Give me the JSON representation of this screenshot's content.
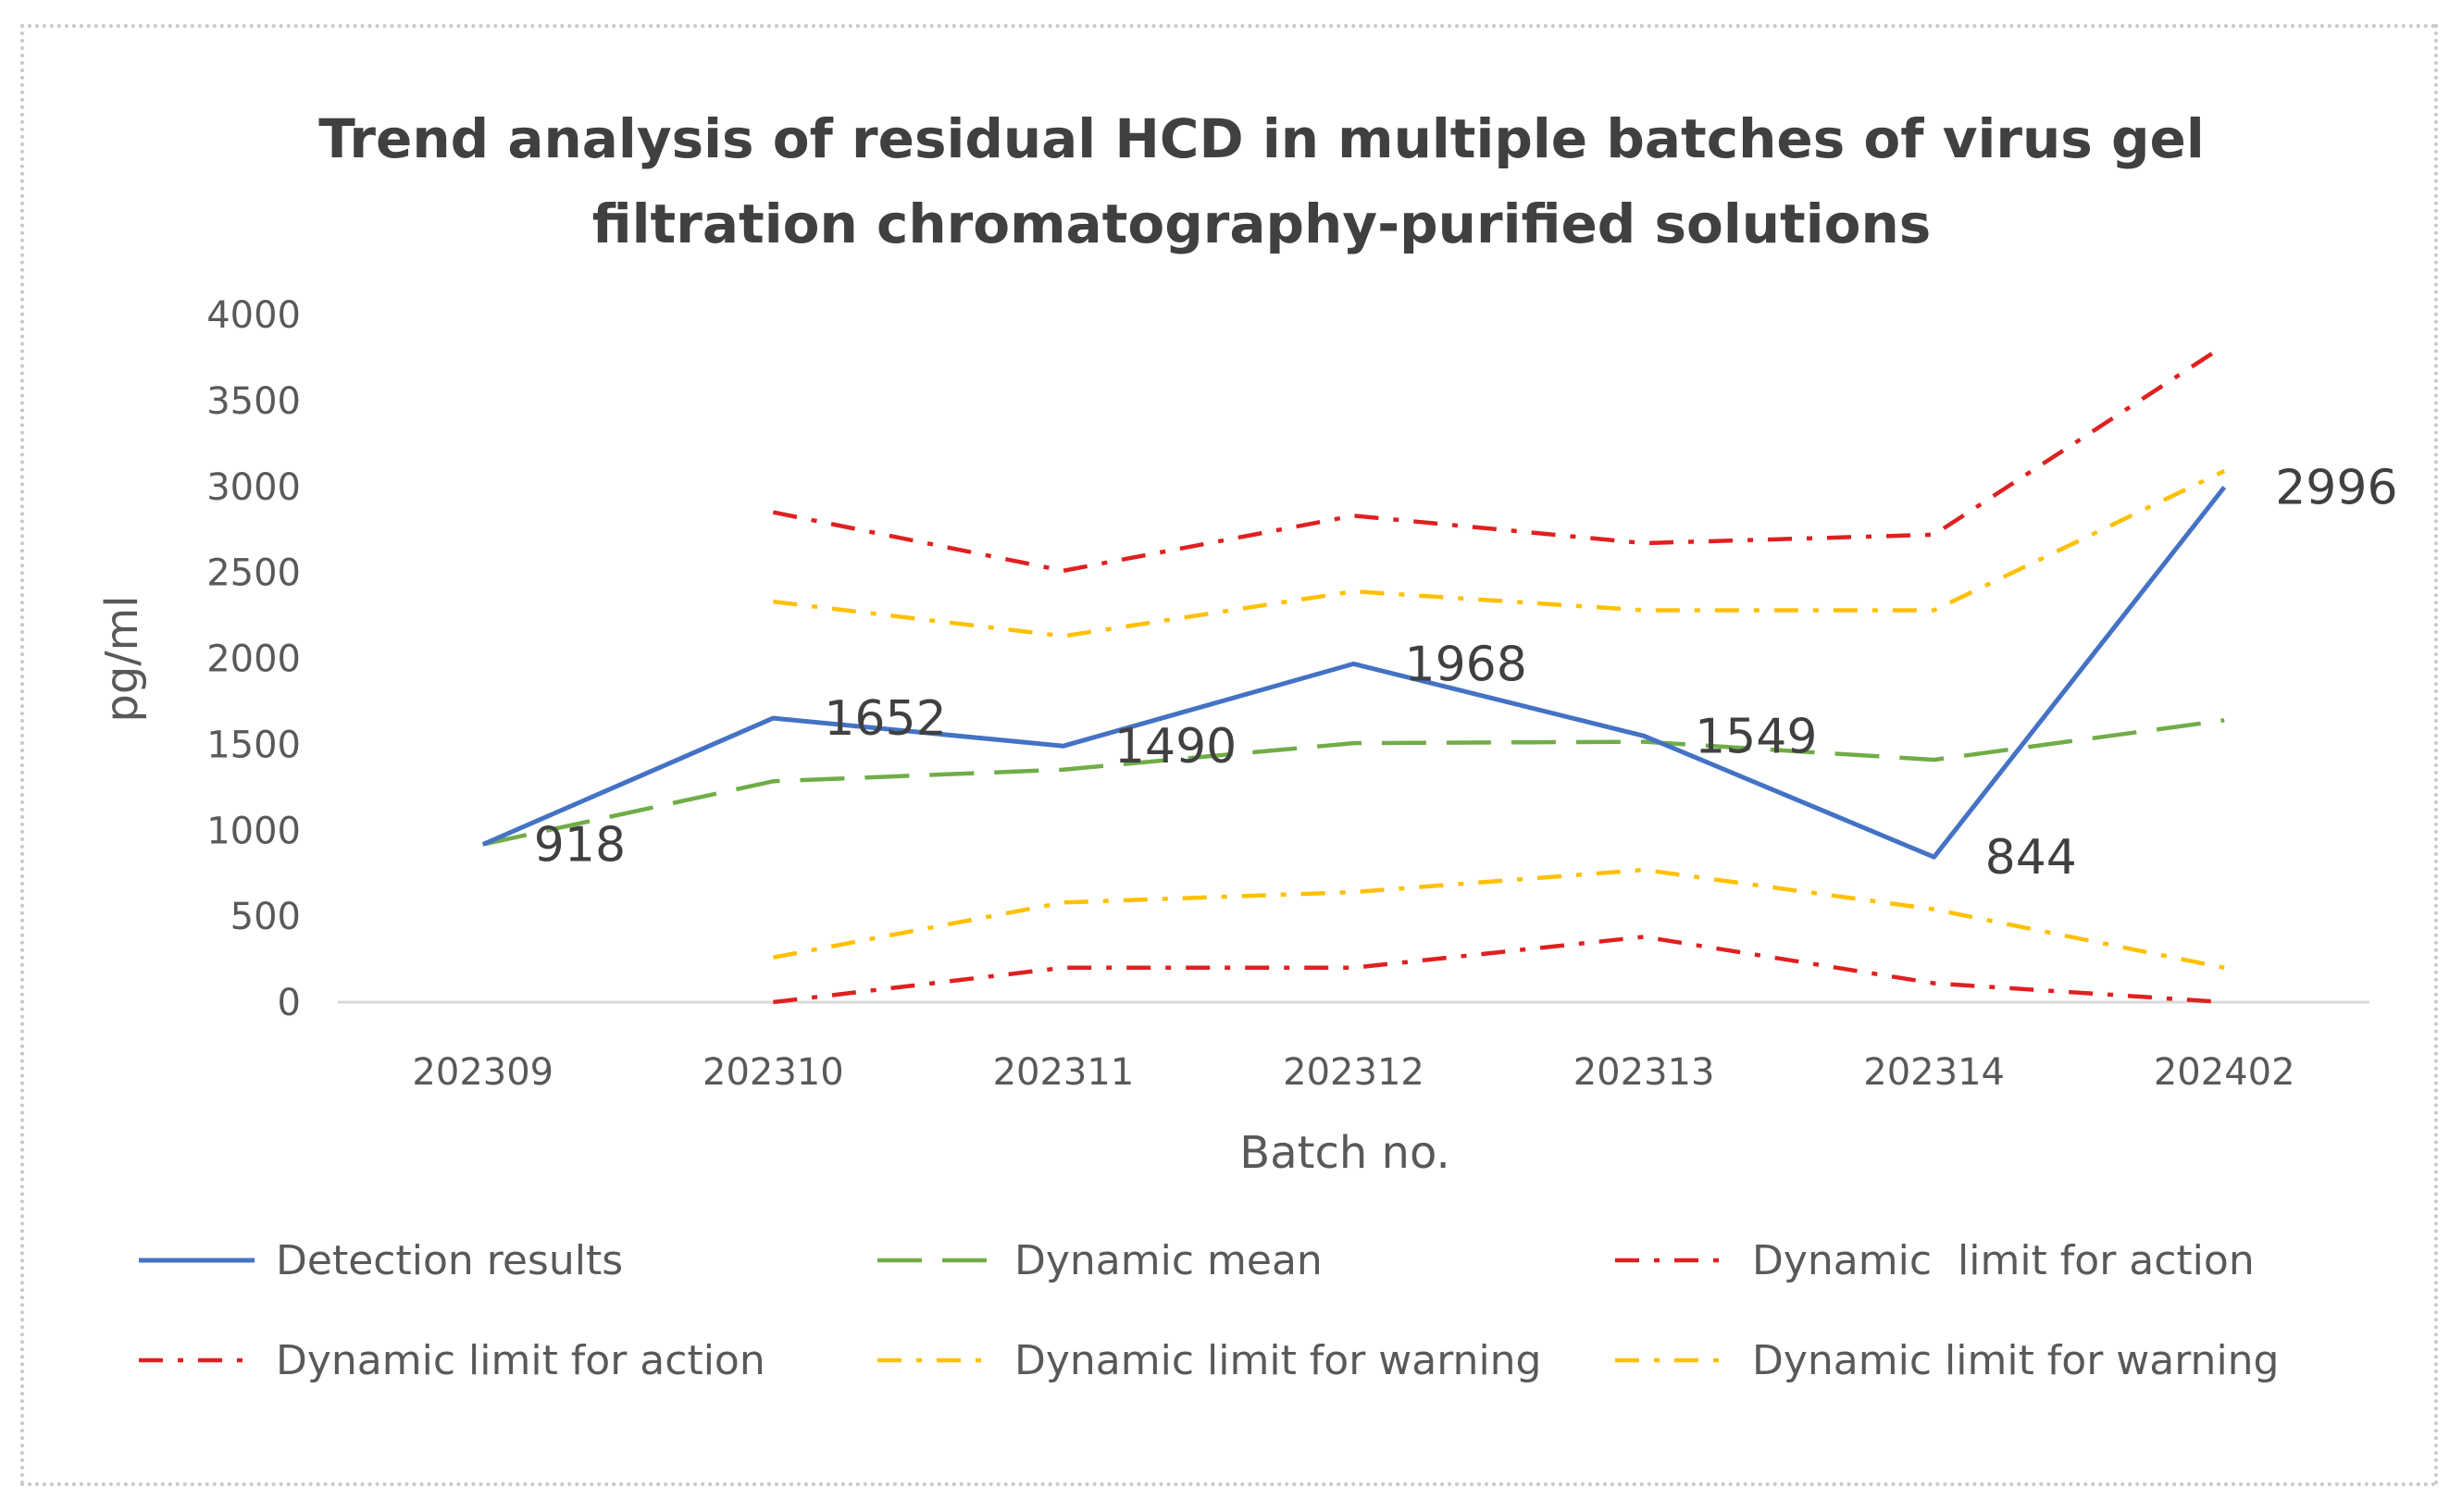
{
  "chart_data": {
    "type": "line",
    "title": "Trend analysis of residual HCD in multiple batches of virus gel filtration chromatography-purified solutions",
    "title_lines": [
      "Trend analysis of residual HCD in multiple batches of virus gel",
      "filtration chromatography-purified solutions"
    ],
    "xlabel": "Batch no.",
    "ylabel": "pg/ml",
    "ylim": [
      0,
      4000
    ],
    "y_ticks": [
      "0",
      "500",
      "1000",
      "1500",
      "2000",
      "2500",
      "3000",
      "3500",
      "4000"
    ],
    "grid": false,
    "legend_position": "bottom",
    "categories": [
      "202309",
      "202310",
      "202311",
      "202312",
      "202313",
      "202314",
      "202402"
    ],
    "series": [
      {
        "name": "Detection results",
        "style": "solid",
        "color": "#4472C4",
        "values": [
          918,
          1652,
          1490,
          1968,
          1549,
          844,
          2996
        ],
        "labels": [
          "918",
          "1652",
          "1490",
          "1968",
          "1549",
          "844",
          "2996"
        ]
      },
      {
        "name": "Dynamic mean",
        "style": "dash",
        "color": "#70AD47",
        "values": [
          918,
          1285,
          1353,
          1507,
          1515,
          1410,
          1640
        ]
      },
      {
        "name": "Dynamic  limit for action",
        "style": "dashdot",
        "color": "#E02020",
        "values": [
          null,
          2850,
          2510,
          2830,
          2670,
          2720,
          3820
        ]
      },
      {
        "name": "Dynamic limit for action",
        "style": "dashdot",
        "color": "#E02020",
        "values": [
          null,
          0,
          200,
          200,
          380,
          110,
          0
        ]
      },
      {
        "name": "Dynamic limit for warning",
        "style": "dashdot",
        "color": "#FFC000",
        "values": [
          null,
          2330,
          2130,
          2390,
          2280,
          2280,
          3090
        ]
      },
      {
        "name": "Dynamic limit for warning",
        "style": "dashdot",
        "color": "#FFC000",
        "values": [
          null,
          260,
          580,
          640,
          770,
          540,
          200
        ]
      }
    ]
  }
}
